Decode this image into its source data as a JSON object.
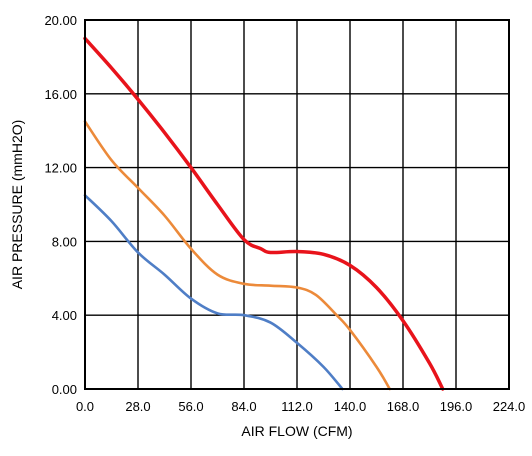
{
  "chart_data": {
    "type": "line",
    "title": "",
    "xlabel": "AIR FLOW   (CFM)",
    "ylabel": "AIR PRESSURE   (mmH2O)",
    "xlim": [
      0,
      224
    ],
    "ylim": [
      0,
      20
    ],
    "x_ticks": [
      0,
      28,
      56,
      84,
      112,
      140,
      168,
      196,
      224
    ],
    "y_ticks": [
      0,
      4,
      8,
      12,
      16,
      20
    ],
    "x_tick_labels": [
      "0.0",
      "28.0",
      "56.0",
      "84.0",
      "112.0",
      "140.0",
      "168.0",
      "196.0",
      "224.0"
    ],
    "y_tick_labels": [
      "0.00",
      "4.00",
      "8.00",
      "12.00",
      "16.00",
      "20.00"
    ],
    "grid": true,
    "legend": "none",
    "series": [
      {
        "color": "#e8131b",
        "points": [
          [
            0,
            19.0
          ],
          [
            14,
            17.4
          ],
          [
            28,
            15.7
          ],
          [
            42,
            13.9
          ],
          [
            56,
            12.0
          ],
          [
            70,
            10.0
          ],
          [
            84,
            8.1
          ],
          [
            93,
            7.6
          ],
          [
            98,
            7.4
          ],
          [
            112,
            7.45
          ],
          [
            126,
            7.3
          ],
          [
            140,
            6.7
          ],
          [
            154,
            5.5
          ],
          [
            168,
            3.7
          ],
          [
            182,
            1.4
          ],
          [
            189,
            0.0
          ]
        ]
      },
      {
        "color": "#ec8a3a",
        "points": [
          [
            0,
            14.5
          ],
          [
            14,
            12.4
          ],
          [
            28,
            10.9
          ],
          [
            42,
            9.4
          ],
          [
            56,
            7.6
          ],
          [
            70,
            6.2
          ],
          [
            84,
            5.7
          ],
          [
            98,
            5.6
          ],
          [
            112,
            5.5
          ],
          [
            122,
            5.1
          ],
          [
            133,
            4.0
          ],
          [
            140,
            3.2
          ],
          [
            154,
            1.2
          ],
          [
            161,
            0.0
          ]
        ]
      },
      {
        "color": "#4f7ec6",
        "points": [
          [
            0,
            10.5
          ],
          [
            14,
            9.1
          ],
          [
            28,
            7.4
          ],
          [
            42,
            6.2
          ],
          [
            56,
            4.9
          ],
          [
            70,
            4.1
          ],
          [
            84,
            4.0
          ],
          [
            98,
            3.6
          ],
          [
            112,
            2.5
          ],
          [
            126,
            1.2
          ],
          [
            136,
            0.0
          ]
        ]
      }
    ]
  }
}
